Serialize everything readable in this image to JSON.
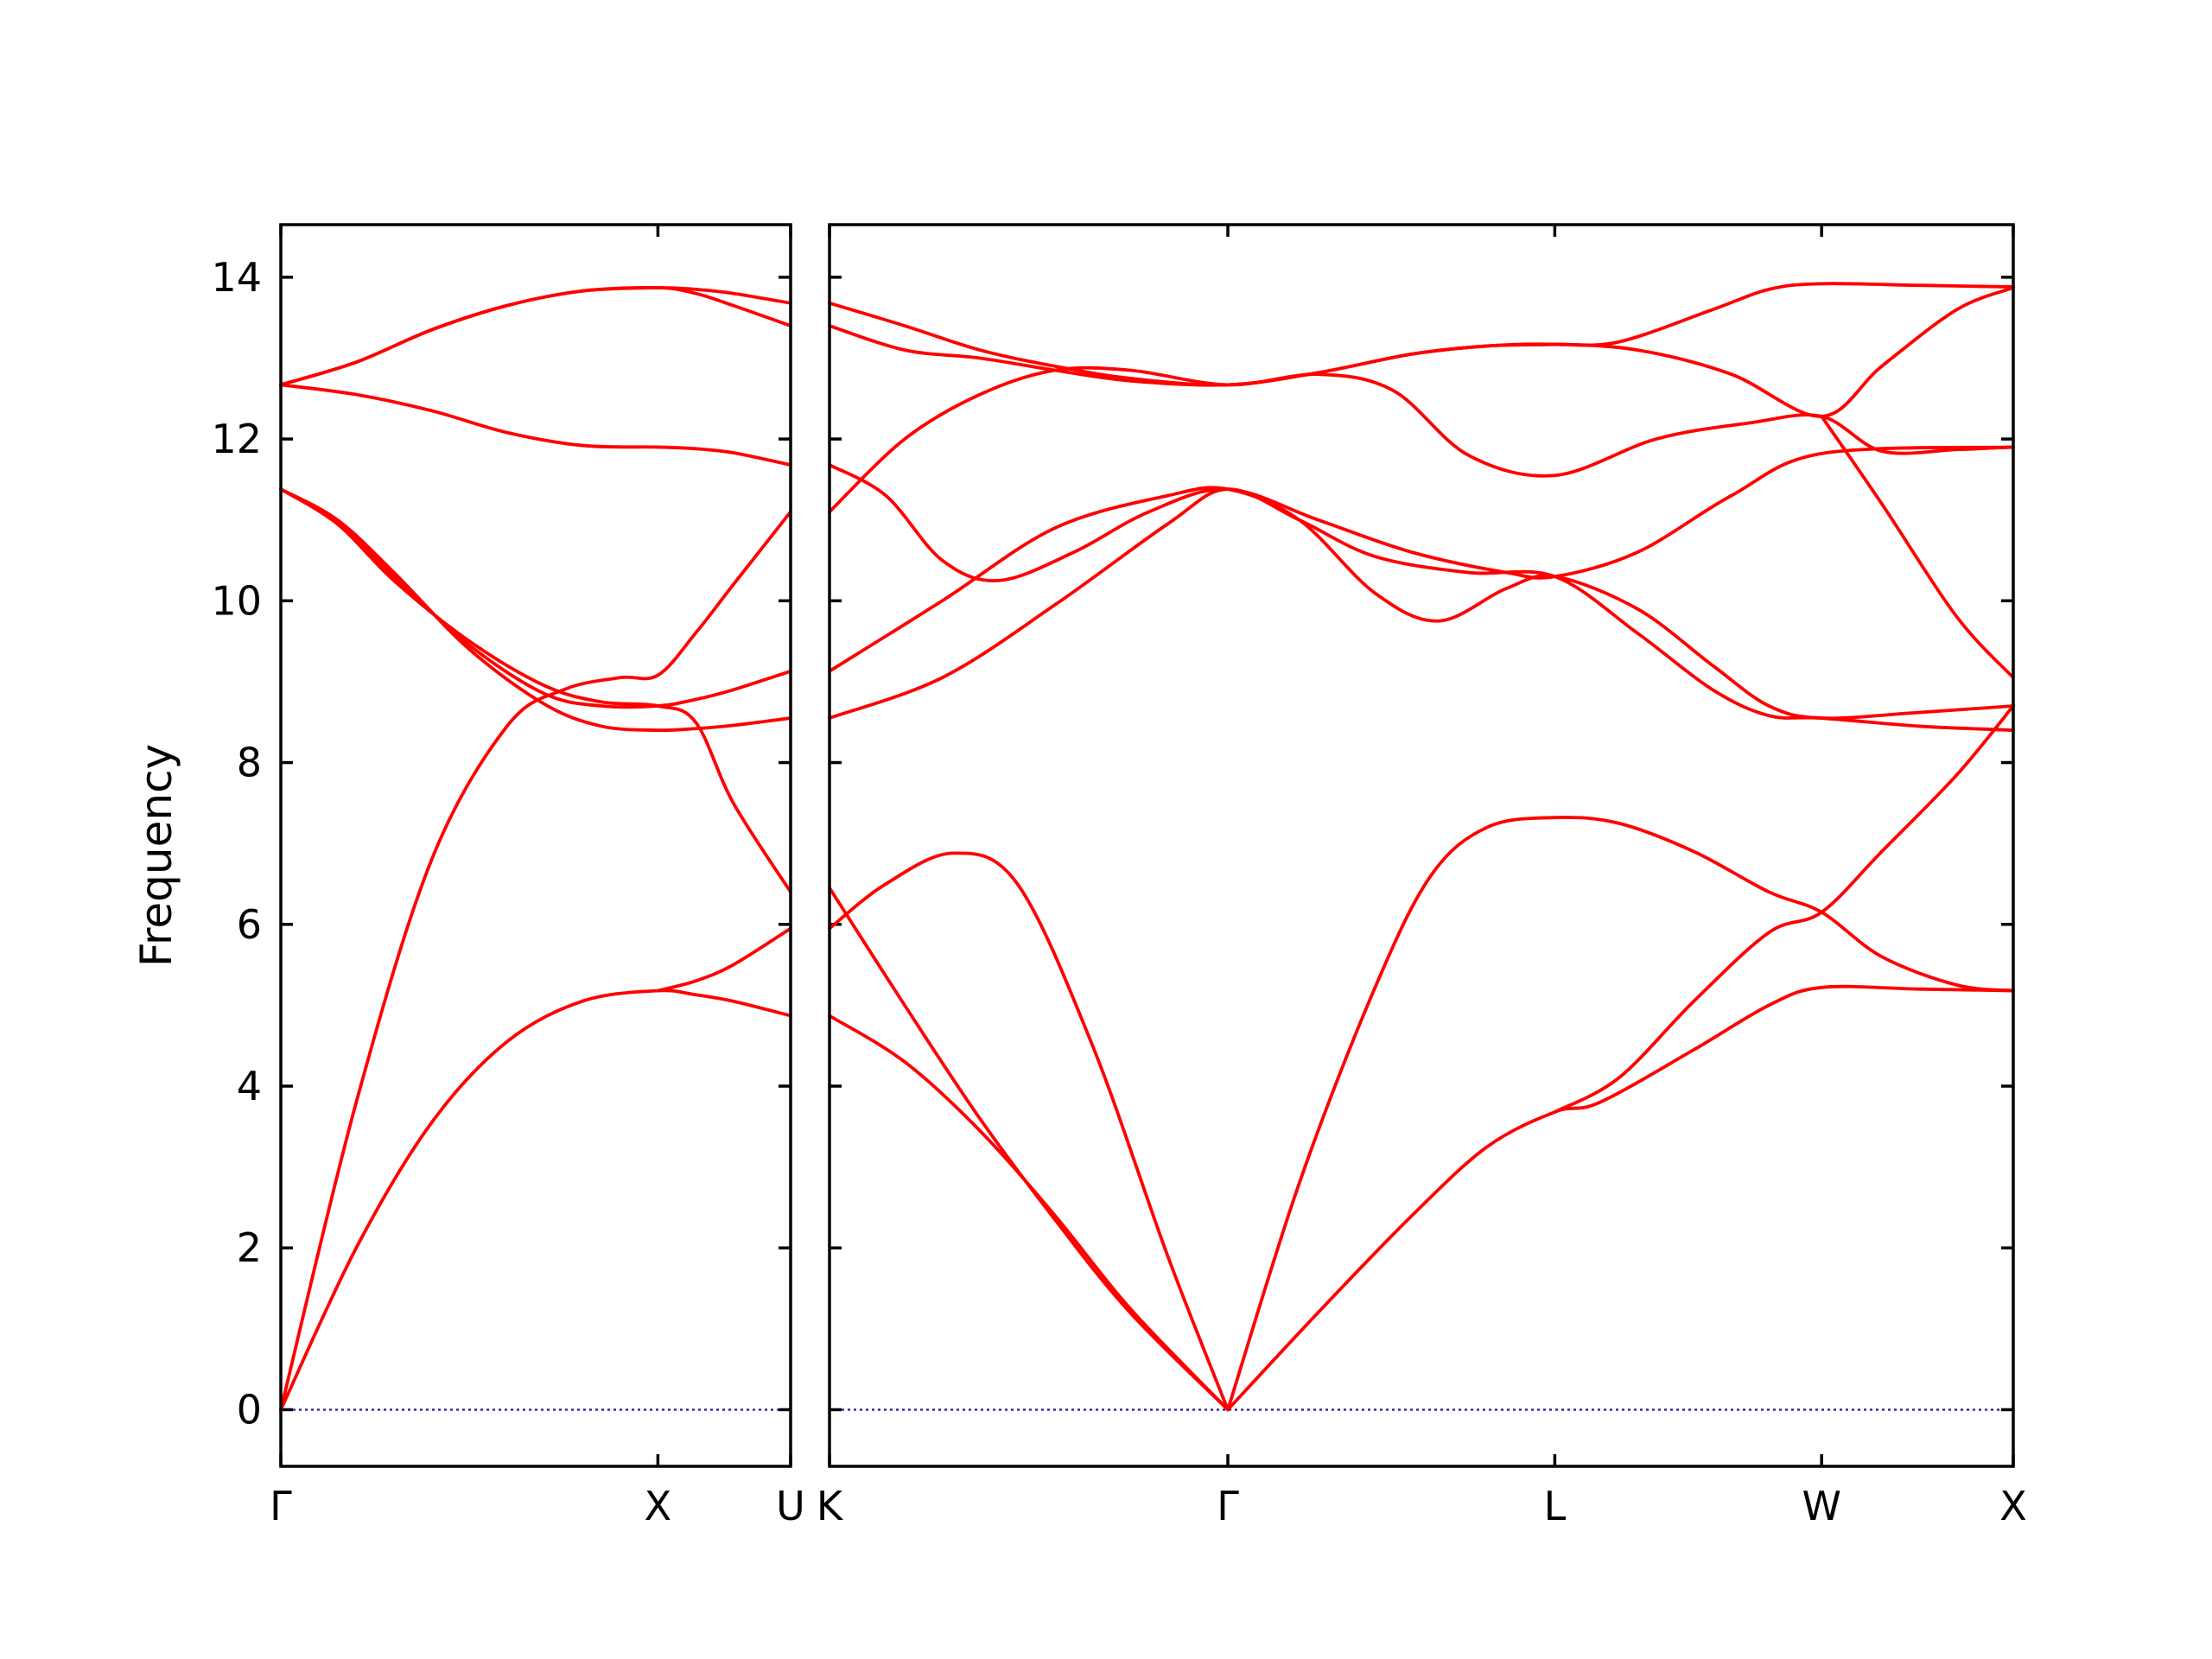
{
  "chart_data": {
    "type": "line",
    "title": "",
    "ylabel": "Frequency",
    "xlabel": "",
    "ylim": [
      -0.7,
      14.65
    ],
    "yticks": [
      0,
      2,
      4,
      6,
      8,
      10,
      12,
      14
    ],
    "grid": false,
    "legend": "none",
    "line_color": "#ff0000",
    "zero_line_color": "#1a1aa8",
    "panels": [
      {
        "name": "left",
        "xlim": [
          0,
          1.352
        ],
        "ticks": [
          {
            "x": 0,
            "label": "Γ"
          },
          {
            "x": 1.0,
            "label": "X"
          },
          {
            "x": 1.352,
            "label": "U"
          }
        ],
        "bands": [
          [
            [
              0,
              0
            ],
            [
              0.2,
              2.0
            ],
            [
              0.4,
              3.55
            ],
            [
              0.6,
              4.55
            ],
            [
              0.8,
              5.05
            ],
            [
              1.0,
              5.18
            ],
            [
              1.1,
              5.13
            ],
            [
              1.2,
              5.05
            ],
            [
              1.352,
              4.87
            ]
          ],
          [
            [
              0,
              0
            ],
            [
              0.2,
              3.8
            ],
            [
              0.4,
              6.8
            ],
            [
              0.6,
              8.45
            ],
            [
              0.75,
              8.9
            ],
            [
              0.9,
              9.05
            ],
            [
              1.0,
              9.08
            ],
            [
              1.1,
              9.6
            ],
            [
              1.2,
              10.2
            ],
            [
              1.352,
              11.1
            ]
          ],
          [
            [
              0,
              11.38
            ],
            [
              0.15,
              11.0
            ],
            [
              0.3,
              10.35
            ],
            [
              0.5,
              9.4
            ],
            [
              0.7,
              8.72
            ],
            [
              0.85,
              8.45
            ],
            [
              1.0,
              8.4
            ],
            [
              1.1,
              8.42
            ],
            [
              1.2,
              8.46
            ],
            [
              1.352,
              8.55
            ]
          ],
          [
            [
              0,
              11.38
            ],
            [
              0.15,
              10.95
            ],
            [
              0.3,
              10.25
            ],
            [
              0.5,
              9.5
            ],
            [
              0.7,
              8.95
            ],
            [
              0.85,
              8.75
            ],
            [
              1.0,
              8.7
            ],
            [
              1.1,
              8.5
            ],
            [
              1.2,
              7.5
            ],
            [
              1.352,
              6.4
            ]
          ],
          [
            [
              0,
              11.38
            ],
            [
              0.15,
              10.98
            ],
            [
              0.3,
              10.3
            ],
            [
              0.5,
              9.45
            ],
            [
              0.7,
              8.85
            ],
            [
              0.85,
              8.7
            ],
            [
              1.0,
              8.7
            ],
            [
              1.1,
              8.78
            ],
            [
              1.2,
              8.9
            ],
            [
              1.352,
              9.13
            ]
          ],
          [
            [
              0,
              12.67
            ],
            [
              0.2,
              12.55
            ],
            [
              0.4,
              12.35
            ],
            [
              0.6,
              12.08
            ],
            [
              0.8,
              11.92
            ],
            [
              1.0,
              11.9
            ],
            [
              1.1,
              11.88
            ],
            [
              1.2,
              11.83
            ],
            [
              1.352,
              11.68
            ]
          ],
          [
            [
              0,
              12.67
            ],
            [
              0.2,
              12.95
            ],
            [
              0.4,
              13.35
            ],
            [
              0.6,
              13.65
            ],
            [
              0.8,
              13.83
            ],
            [
              1.0,
              13.87
            ],
            [
              1.1,
              13.85
            ],
            [
              1.2,
              13.8
            ],
            [
              1.352,
              13.68
            ]
          ],
          [
            [
              0,
              12.67
            ],
            [
              0.2,
              12.95
            ],
            [
              0.4,
              13.35
            ],
            [
              0.6,
              13.65
            ],
            [
              0.8,
              13.83
            ],
            [
              1.0,
              13.87
            ],
            [
              1.1,
              13.8
            ],
            [
              1.2,
              13.65
            ],
            [
              1.352,
              13.4
            ]
          ],
          [
            [
              1.0,
              5.18
            ],
            [
              1.1,
              5.3
            ],
            [
              1.2,
              5.5
            ],
            [
              1.352,
              5.95
            ]
          ]
        ]
      },
      {
        "name": "right",
        "xlim": [
          0,
          3.15
        ],
        "ticks": [
          {
            "x": 0,
            "label": "K"
          },
          {
            "x": 1.06,
            "label": "Γ"
          },
          {
            "x": 1.93,
            "label": "L"
          },
          {
            "x": 2.64,
            "label": "W"
          },
          {
            "x": 3.15,
            "label": "X"
          }
        ],
        "bands": [
          [
            [
              0,
              4.87
            ],
            [
              0.2,
              4.3
            ],
            [
              0.4,
              3.45
            ],
            [
              0.6,
              2.4
            ],
            [
              0.8,
              1.25
            ],
            [
              1.06,
              0
            ]
          ],
          [
            [
              0,
              6.45
            ],
            [
              0.2,
              5.0
            ],
            [
              0.4,
              3.6
            ],
            [
              0.6,
              2.35
            ],
            [
              0.8,
              1.2
            ],
            [
              1.06,
              0
            ]
          ],
          [
            [
              0,
              5.95
            ],
            [
              0.15,
              6.5
            ],
            [
              0.33,
              6.88
            ],
            [
              0.5,
              6.5
            ],
            [
              0.7,
              4.5
            ],
            [
              0.9,
              1.9
            ],
            [
              1.06,
              0
            ]
          ],
          [
            [
              1.06,
              0
            ],
            [
              1.3,
              1.2
            ],
            [
              1.55,
              2.4
            ],
            [
              1.75,
              3.25
            ],
            [
              1.93,
              3.68
            ],
            [
              2.05,
              3.8
            ],
            [
              2.3,
              4.45
            ],
            [
              2.5,
              5.0
            ],
            [
              2.64,
              5.22
            ],
            [
              2.9,
              5.2
            ],
            [
              3.15,
              5.18
            ]
          ],
          [
            [
              1.06,
              0
            ],
            [
              1.25,
              2.8
            ],
            [
              1.45,
              5.2
            ],
            [
              1.6,
              6.6
            ],
            [
              1.75,
              7.2
            ],
            [
              1.93,
              7.32
            ],
            [
              2.1,
              7.25
            ],
            [
              2.3,
              6.9
            ],
            [
              2.5,
              6.4
            ],
            [
              2.64,
              6.15
            ],
            [
              2.8,
              5.6
            ],
            [
              3.0,
              5.25
            ],
            [
              3.15,
              5.18
            ]
          ],
          [
            [
              1.93,
              3.68
            ],
            [
              2.1,
              4.1
            ],
            [
              2.3,
              5.05
            ],
            [
              2.5,
              5.9
            ],
            [
              2.64,
              6.15
            ],
            [
              2.8,
              6.9
            ],
            [
              3.0,
              7.85
            ],
            [
              3.15,
              8.7
            ]
          ],
          [
            [
              0,
              8.55
            ],
            [
              0.3,
              9.05
            ],
            [
              0.6,
              9.95
            ],
            [
              0.9,
              10.95
            ],
            [
              1.06,
              11.38
            ],
            [
              1.25,
              11.0
            ],
            [
              1.45,
              10.55
            ],
            [
              1.7,
              10.35
            ],
            [
              1.93,
              10.3
            ],
            [
              2.15,
              9.6
            ],
            [
              2.35,
              8.9
            ],
            [
              2.5,
              8.58
            ],
            [
              2.64,
              8.55
            ],
            [
              2.9,
              8.45
            ],
            [
              3.15,
              8.4
            ]
          ],
          [
            [
              0,
              9.13
            ],
            [
              0.3,
              10.0
            ],
            [
              0.6,
              10.9
            ],
            [
              0.9,
              11.3
            ],
            [
              1.06,
              11.38
            ],
            [
              1.25,
              11.0
            ],
            [
              1.45,
              10.1
            ],
            [
              1.62,
              9.75
            ],
            [
              1.8,
              10.15
            ],
            [
              1.93,
              10.3
            ],
            [
              2.15,
              9.9
            ],
            [
              2.35,
              9.2
            ],
            [
              2.5,
              8.7
            ],
            [
              2.64,
              8.55
            ],
            [
              2.9,
              8.62
            ],
            [
              3.15,
              8.7
            ]
          ],
          [
            [
              0,
              11.1
            ],
            [
              0.2,
              12.0
            ],
            [
              0.4,
              12.55
            ],
            [
              0.6,
              12.85
            ],
            [
              0.8,
              12.85
            ],
            [
              1.06,
              12.67
            ],
            [
              1.3,
              12.8
            ],
            [
              1.5,
              12.6
            ],
            [
              1.7,
              11.8
            ],
            [
              1.93,
              11.55
            ],
            [
              2.2,
              12.0
            ],
            [
              2.45,
              12.2
            ],
            [
              2.64,
              12.28
            ],
            [
              2.8,
              11.85
            ],
            [
              3.0,
              11.87
            ],
            [
              3.15,
              11.9
            ]
          ],
          [
            [
              0,
              11.68
            ],
            [
              0.15,
              11.3
            ],
            [
              0.3,
              10.5
            ],
            [
              0.45,
              10.25
            ],
            [
              0.65,
              10.6
            ],
            [
              0.85,
              11.1
            ],
            [
              1.06,
              11.38
            ],
            [
              1.3,
              11.0
            ],
            [
              1.55,
              10.6
            ],
            [
              1.8,
              10.35
            ],
            [
              1.93,
              10.3
            ],
            [
              2.15,
              10.6
            ],
            [
              2.4,
              11.3
            ],
            [
              2.64,
              11.82
            ],
            [
              3.15,
              11.9
            ]
          ],
          [
            [
              0,
              13.4
            ],
            [
              0.2,
              13.1
            ],
            [
              0.4,
              13.0
            ],
            [
              0.6,
              12.85
            ],
            [
              0.8,
              12.72
            ],
            [
              1.06,
              12.67
            ],
            [
              1.3,
              12.82
            ],
            [
              1.55,
              13.05
            ],
            [
              1.75,
              13.15
            ],
            [
              1.93,
              13.17
            ],
            [
              2.15,
              13.1
            ],
            [
              2.4,
              12.8
            ],
            [
              2.64,
              12.28
            ],
            [
              2.8,
              12.9
            ],
            [
              3.0,
              13.6
            ],
            [
              3.15,
              13.87
            ]
          ],
          [
            [
              0,
              13.68
            ],
            [
              0.2,
              13.4
            ],
            [
              0.4,
              13.1
            ],
            [
              0.6,
              12.9
            ],
            [
              0.8,
              12.75
            ],
            [
              1.06,
              12.67
            ],
            [
              1.3,
              12.82
            ],
            [
              1.55,
              13.05
            ],
            [
              1.75,
              13.15
            ],
            [
              1.93,
              13.17
            ],
            [
              2.1,
              13.2
            ],
            [
              2.35,
              13.6
            ],
            [
              2.5,
              13.85
            ],
            [
              2.64,
              13.92
            ],
            [
              2.9,
              13.9
            ],
            [
              3.15,
              13.88
            ]
          ],
          [
            [
              2.64,
              12.28
            ],
            [
              2.8,
              11.2
            ],
            [
              3.0,
              9.8
            ],
            [
              3.15,
              9.05
            ]
          ]
        ]
      }
    ]
  }
}
